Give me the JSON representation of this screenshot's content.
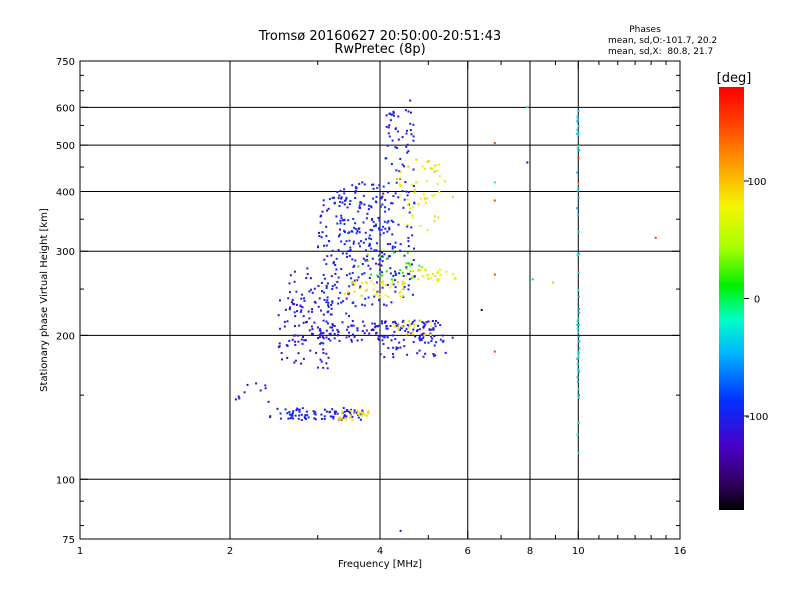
{
  "chart_data": {
    "type": "scatter",
    "title": "Tromsø 20160627 20:50:00-20:51:43",
    "subtitle": "RwPretec (8p)",
    "stats": {
      "heading": "Phases",
      "line_o": "mean, sd,O:-101.7, 20.2",
      "line_x": "mean, sd,X:  80.8, 21.7"
    },
    "xlabel": "Frequency [MHz]",
    "ylabel": "Stationary phase Virtual Height [km]",
    "x_scale": "log",
    "y_scale": "log",
    "xlim": [
      1,
      16
    ],
    "ylim": [
      75,
      750
    ],
    "x_ticks": [
      1,
      2,
      4,
      6,
      8,
      10,
      16
    ],
    "x_tick_labels": [
      "1",
      "2",
      "4",
      "6",
      "8",
      "10",
      "16"
    ],
    "x_grid": [
      2,
      4,
      6,
      8,
      10
    ],
    "y_ticks": [
      75,
      100,
      200,
      300,
      400,
      500,
      600,
      750
    ],
    "y_tick_labels": [
      "75",
      "100",
      "200",
      "300",
      "400",
      "500",
      "600",
      "750"
    ],
    "y_grid": [
      100,
      200,
      300,
      400,
      500,
      600
    ],
    "grid": true,
    "colorbar": {
      "label": "[deg]",
      "range": [
        -180,
        180
      ],
      "ticks": [
        100,
        0,
        -100
      ],
      "tick_labels": [
        "100",
        "0",
        "-100"
      ],
      "position": "right"
    },
    "series": [
      {
        "clusters": [
          {
            "x0": 2.4,
            "x1": 3.7,
            "y0": 133,
            "y1": 141,
            "phase0": -100,
            "phase1": -100,
            "n": 90
          },
          {
            "x0": 3.3,
            "x1": 3.8,
            "y0": 133,
            "y1": 140,
            "phase0": 85,
            "phase1": 85,
            "n": 30
          },
          {
            "x0": 2.05,
            "x1": 2.5,
            "y0": 145,
            "y1": 160,
            "phase0": -105,
            "phase1": -105,
            "n": 10
          },
          {
            "x0": 2.5,
            "x1": 3.2,
            "y0": 170,
            "y1": 240,
            "phase0": -110,
            "phase1": -110,
            "n": 70
          },
          {
            "x0": 2.6,
            "x1": 3.6,
            "y0": 190,
            "y1": 280,
            "phase0": -100,
            "phase1": -100,
            "n": 90
          },
          {
            "x0": 3.0,
            "x1": 4.3,
            "y0": 230,
            "y1": 400,
            "phase0": -100,
            "phase1": -100,
            "n": 180
          },
          {
            "x0": 3.3,
            "x1": 4.1,
            "y0": 300,
            "y1": 420,
            "phase0": -95,
            "phase1": -95,
            "n": 80
          },
          {
            "x0": 3.0,
            "x1": 5.2,
            "y0": 195,
            "y1": 215,
            "phase0": -105,
            "phase1": -105,
            "n": 110
          },
          {
            "x0": 4.0,
            "x1": 5.6,
            "y0": 180,
            "y1": 215,
            "phase0": -100,
            "phase1": -100,
            "n": 60
          },
          {
            "x0": 4.1,
            "x1": 4.7,
            "y0": 240,
            "y1": 600,
            "phase0": -100,
            "phase1": -100,
            "n": 110
          },
          {
            "x0": 4.3,
            "x1": 5.3,
            "y0": 330,
            "y1": 470,
            "phase0": 85,
            "phase1": 85,
            "n": 50
          },
          {
            "x0": 3.4,
            "x1": 4.5,
            "y0": 240,
            "y1": 260,
            "phase0": 85,
            "phase1": 85,
            "n": 40
          },
          {
            "x0": 4.5,
            "x1": 5.7,
            "y0": 260,
            "y1": 275,
            "phase0": 80,
            "phase1": 80,
            "n": 30
          },
          {
            "x0": 4.2,
            "x1": 5.2,
            "y0": 200,
            "y1": 215,
            "phase0": 80,
            "phase1": 80,
            "n": 25
          },
          {
            "x0": 3.6,
            "x1": 4.9,
            "y0": 260,
            "y1": 300,
            "phase0": 20,
            "phase1": 20,
            "n": 25
          },
          {
            "x0": 9.95,
            "x1": 10.05,
            "y0": 140,
            "y1": 610,
            "phase0": -40,
            "phase1": -40,
            "n": 50
          },
          {
            "x0": 9.95,
            "x1": 10.05,
            "y0": 105,
            "y1": 200,
            "phase0": -20,
            "phase1": -20,
            "n": 6
          }
        ]
      }
    ],
    "points": [
      {
        "x": 6.8,
        "y": 505,
        "phase": 150
      },
      {
        "x": 6.8,
        "y": 383,
        "phase": 150
      },
      {
        "x": 6.8,
        "y": 268,
        "phase": 150
      },
      {
        "x": 6.8,
        "y": 185,
        "phase": 150
      },
      {
        "x": 6.8,
        "y": 418,
        "phase": -30
      },
      {
        "x": 6.4,
        "y": 226,
        "phase": -160
      },
      {
        "x": 7.9,
        "y": 600,
        "phase": -30
      },
      {
        "x": 7.9,
        "y": 460,
        "phase": -120
      },
      {
        "x": 8.1,
        "y": 262,
        "phase": -40
      },
      {
        "x": 8.9,
        "y": 258,
        "phase": 100
      },
      {
        "x": 10.0,
        "y": 470,
        "phase": 150
      },
      {
        "x": 10.0,
        "y": 415,
        "phase": 120
      },
      {
        "x": 14.3,
        "y": 320,
        "phase": 150
      },
      {
        "x": 4.4,
        "y": 78,
        "phase": -110
      },
      {
        "x": 4.6,
        "y": 620,
        "phase": -115
      },
      {
        "x": 5.4,
        "y": 420,
        "phase": 90
      },
      {
        "x": 5.6,
        "y": 390,
        "phase": 40
      }
    ]
  }
}
